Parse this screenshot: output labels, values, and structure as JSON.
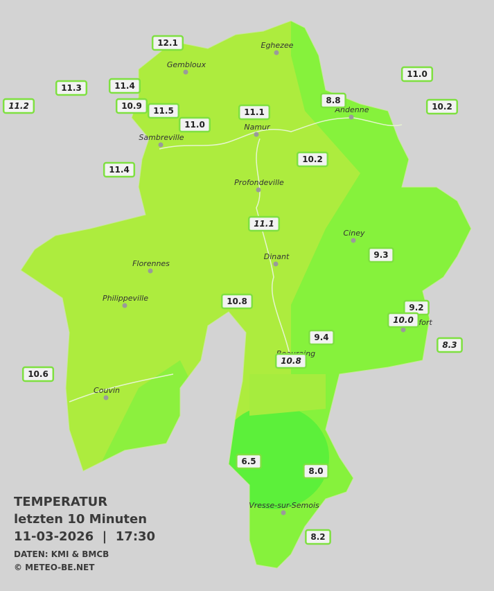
{
  "title": "TEMPERATUR",
  "subtitle": "letzten 10 Minuten",
  "datetime": "11-03-2026  |  17:30",
  "source": "DATEN: KMI & BMCB",
  "credit": "© METEO-BE.NET",
  "cities": [
    "Eghezee",
    "Gembloux",
    "Andenne",
    "Namur",
    "Sambreville",
    "Profondeville",
    "Ciney",
    "Dinant",
    "Florennes",
    "Philippeville",
    "Rochefort",
    "Beauraing",
    "Couvin",
    "Vresse-sur-Semois"
  ],
  "stations": [
    {
      "value": "12.1"
    },
    {
      "value": "11.0"
    },
    {
      "value": "11.3"
    },
    {
      "value": "11.4"
    },
    {
      "value": "11.2",
      "italic": true
    },
    {
      "value": "10.9"
    },
    {
      "value": "11.5"
    },
    {
      "value": "8.8"
    },
    {
      "value": "11.1"
    },
    {
      "value": "10.2"
    },
    {
      "value": "11.0"
    },
    {
      "value": "10.2"
    },
    {
      "value": "11.4"
    },
    {
      "value": "11.1",
      "italic": true
    },
    {
      "value": "9.3"
    },
    {
      "value": "10.8"
    },
    {
      "value": "9.2"
    },
    {
      "value": "10.0",
      "italic": true
    },
    {
      "value": "9.4"
    },
    {
      "value": "8.3",
      "italic": true
    },
    {
      "value": "10.8",
      "italic": true
    },
    {
      "value": "10.6"
    },
    {
      "value": "6.5"
    },
    {
      "value": "8.0"
    },
    {
      "value": "8.2"
    }
  ]
}
